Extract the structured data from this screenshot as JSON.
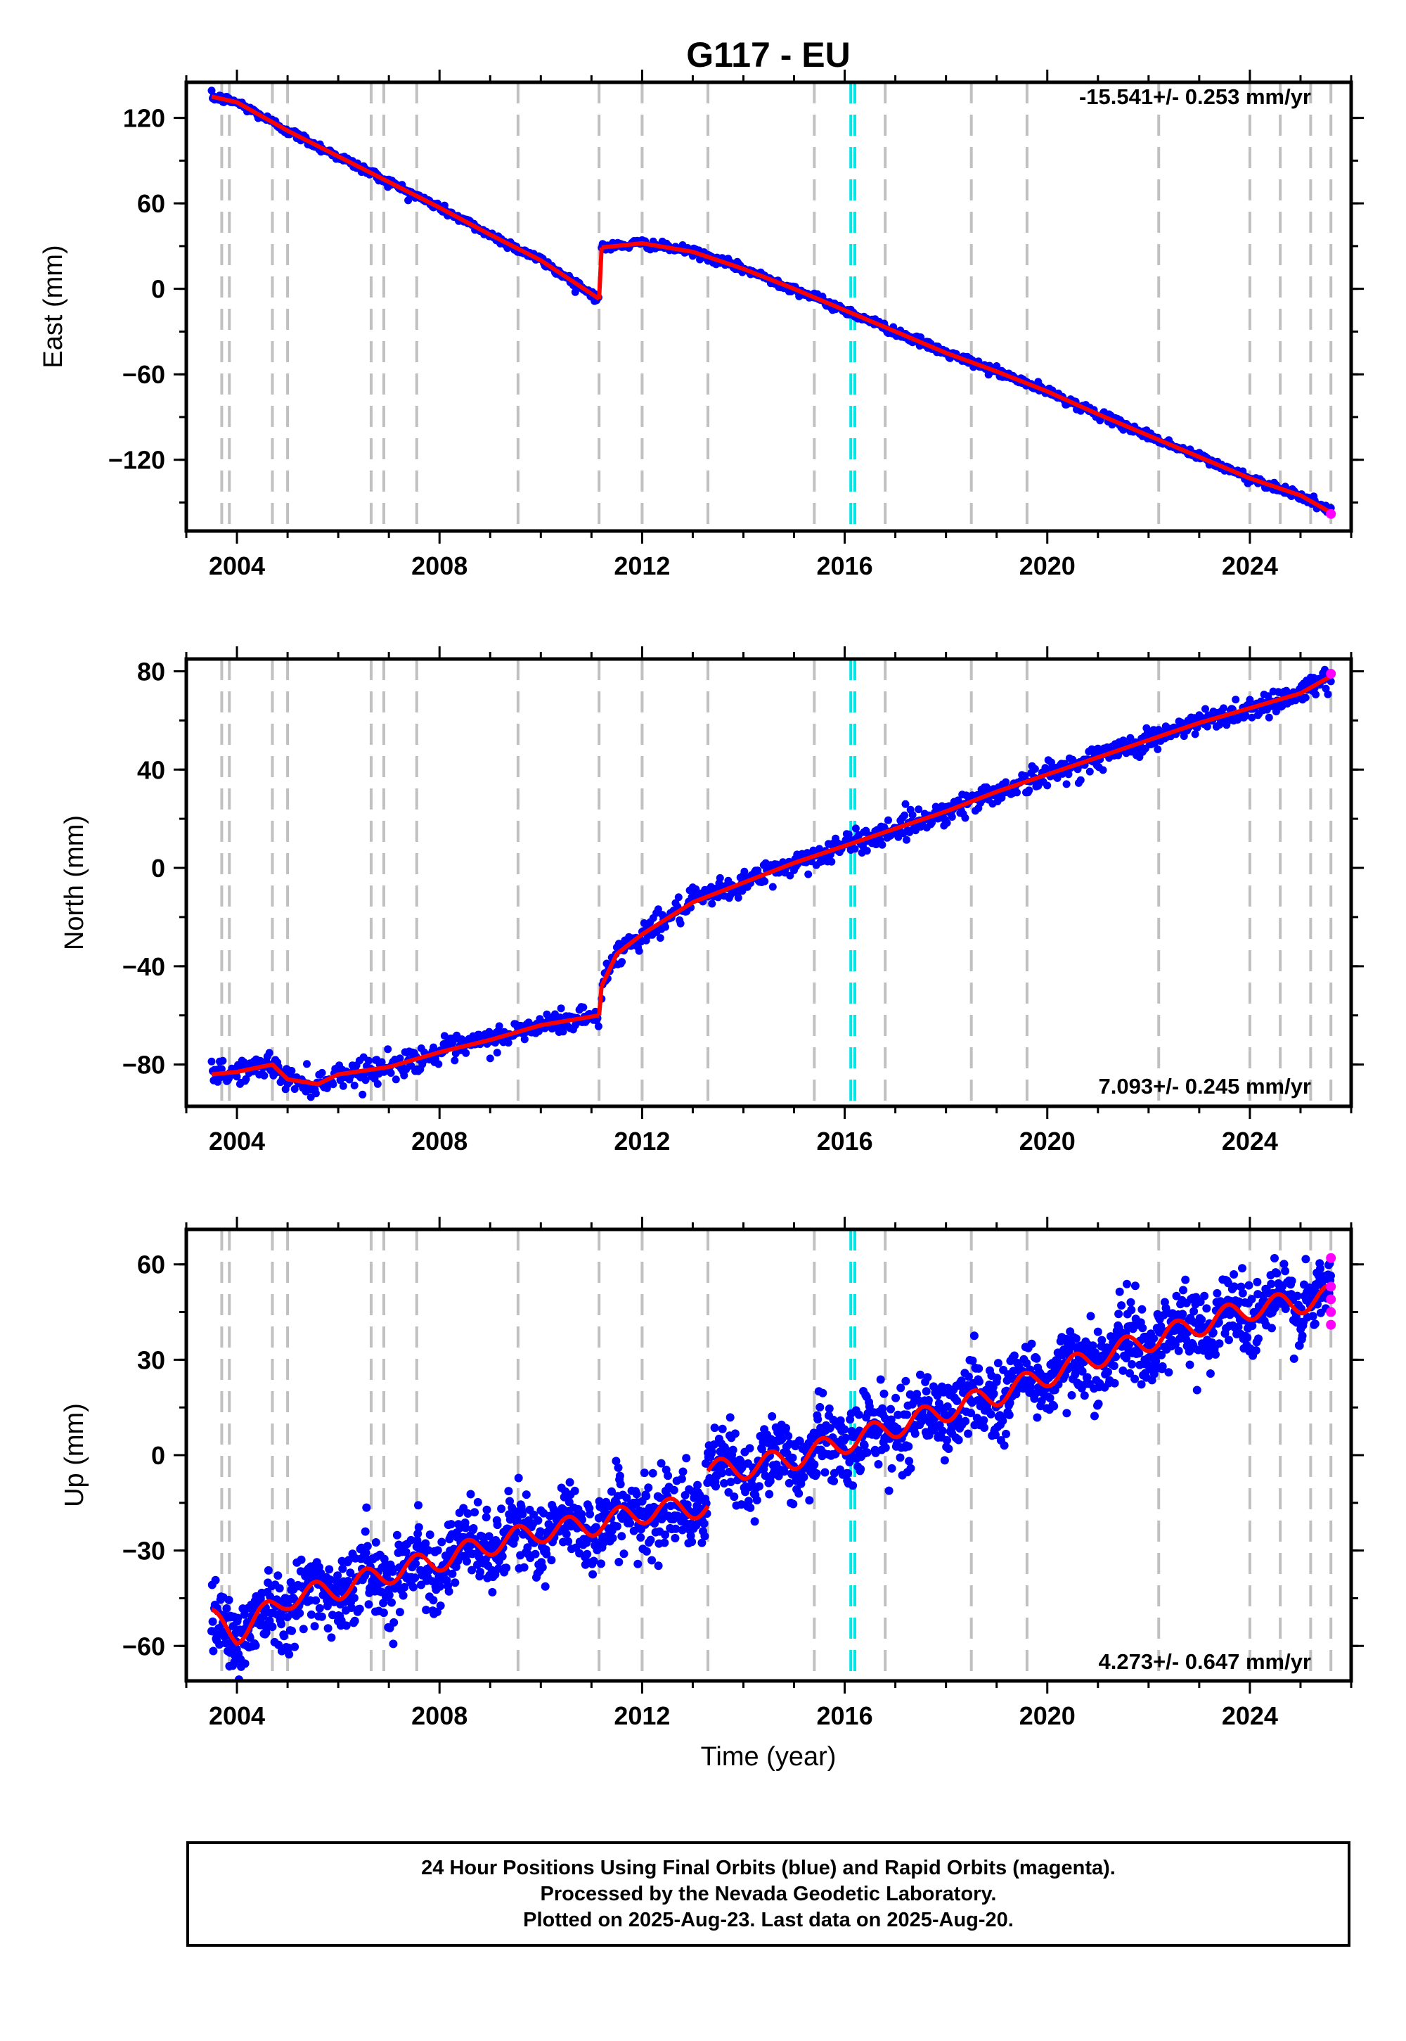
{
  "title": "G117 - EU",
  "xlabel": "Time (year)",
  "caption": [
    "24 Hour Positions Using Final Orbits (blue) and Rapid Orbits (magenta).",
    "Processed by the Nevada Geodetic Laboratory.",
    "Plotted on 2025-Aug-23. Last data on 2025-Aug-20."
  ],
  "colors": {
    "final_orbits": "#0000ff",
    "rapid_orbits": "#ff00ff",
    "model": "#ff0000",
    "equipment_change": "#c0c0c0",
    "earthquake": "#00e5e5"
  },
  "chart_data": [
    {
      "type": "scatter",
      "ylabel": "East (mm)",
      "rate_label": "-15.541+/- 0.253 mm/yr",
      "xlim": [
        2003.0,
        2026.0
      ],
      "ylim": [
        -170,
        145
      ],
      "xticks": [
        "2004",
        "2008",
        "2012",
        "2016",
        "2020",
        "2024"
      ],
      "yticks": [
        "120",
        "60",
        "0",
        "-60",
        "-120"
      ],
      "grid": false,
      "series": [
        {
          "name": "Final Orbits (blue)",
          "segments": [
            {
              "x": [
                2003.5,
                2004.0,
                2005.0,
                2006.0,
                2007.0,
                2008.0,
                2009.0,
                2010.0,
                2011.15
              ],
              "y": [
                135,
                131,
                111,
                93,
                75,
                57,
                38,
                20,
                -7
              ]
            },
            {
              "x": [
                2011.2,
                2012.0,
                2013.0,
                2014.0,
                2015.0,
                2016.0,
                2017.0,
                2018.0,
                2019.0,
                2020.0,
                2021.0,
                2022.0,
                2023.0,
                2024.0,
                2025.0,
                2025.6
              ],
              "y": [
                29,
                32,
                26,
                14,
                0,
                -15,
                -30,
                -45,
                -58,
                -72,
                -88,
                -103,
                -118,
                -133,
                -145,
                -157
              ]
            }
          ],
          "scatter_mm": 1.5
        },
        {
          "name": "Rapid Orbits (magenta)",
          "x": [
            2025.6
          ],
          "y": [
            -158
          ]
        }
      ],
      "model_line": [
        {
          "x": [
            2003.5,
            2004.0,
            2005.0,
            2006.0,
            2007.0,
            2008.0,
            2009.0,
            2010.0,
            2011.15
          ],
          "y": [
            135,
            131,
            111,
            93,
            75,
            57,
            38,
            20,
            -7
          ]
        },
        {
          "x": [
            2011.15,
            2011.2
          ],
          "y": [
            -7,
            29
          ]
        },
        {
          "x": [
            2011.2,
            2012.0,
            2013.0,
            2014.0,
            2015.0,
            2016.0,
            2017.0,
            2018.0,
            2019.0,
            2020.0,
            2021.0,
            2022.0,
            2023.0,
            2024.0,
            2025.0,
            2025.6
          ],
          "y": [
            29,
            32,
            26,
            14,
            0,
            -15,
            -30,
            -45,
            -58,
            -72,
            -88,
            -103,
            -118,
            -133,
            -145,
            -157
          ]
        }
      ]
    },
    {
      "type": "scatter",
      "ylabel": "North (mm)",
      "rate_label": "7.093+/- 0.245 mm/yr",
      "xlim": [
        2003.0,
        2026.0
      ],
      "ylim": [
        -97,
        85
      ],
      "xticks": [
        "2004",
        "2008",
        "2012",
        "2016",
        "2020",
        "2024"
      ],
      "yticks": [
        "80",
        "40",
        "0",
        "-40",
        "-80"
      ],
      "grid": false,
      "series": [
        {
          "name": "Final Orbits (blue)",
          "segments": [
            {
              "x": [
                2003.5,
                2004.0,
                2004.7,
                2005.0,
                2005.6,
                2006.0,
                2007.0,
                2008.0,
                2009.0,
                2010.0,
                2011.15
              ],
              "y": [
                -84,
                -83,
                -80,
                -86,
                -88,
                -84,
                -81,
                -75,
                -70,
                -64,
                -60
              ]
            },
            {
              "x": [
                2011.2,
                2011.5,
                2012.0,
                2013.0,
                2014.0,
                2015.0,
                2016.0,
                2017.0,
                2018.0,
                2019.0,
                2020.0,
                2021.0,
                2022.0,
                2023.0,
                2024.0,
                2025.0,
                2025.6
              ],
              "y": [
                -48,
                -35,
                -27,
                -14,
                -6,
                2,
                9,
                16,
                23,
                31,
                38,
                45,
                52,
                59,
                65,
                71,
                78
              ]
            }
          ],
          "scatter_mm": 2.5
        },
        {
          "name": "Rapid Orbits (magenta)",
          "x": [
            2025.6
          ],
          "y": [
            79
          ]
        }
      ],
      "model_line": [
        {
          "x": [
            2003.5,
            2004.0,
            2004.7,
            2005.0,
            2005.6,
            2006.0,
            2007.0,
            2008.0,
            2009.0,
            2010.0,
            2011.15
          ],
          "y": [
            -84,
            -83,
            -80,
            -86,
            -88,
            -84,
            -81,
            -75,
            -70,
            -64,
            -60
          ]
        },
        {
          "x": [
            2011.15,
            2011.2
          ],
          "y": [
            -60,
            -48
          ]
        },
        {
          "x": [
            2011.2,
            2011.5,
            2012.0,
            2013.0,
            2014.0,
            2015.0,
            2016.0,
            2017.0,
            2018.0,
            2019.0,
            2020.0,
            2021.0,
            2022.0,
            2023.0,
            2024.0,
            2025.0,
            2025.6
          ],
          "y": [
            -48,
            -35,
            -27,
            -14,
            -6,
            2,
            9,
            16,
            23,
            31,
            38,
            45,
            52,
            59,
            65,
            71,
            78
          ]
        }
      ]
    },
    {
      "type": "scatter",
      "ylabel": "Up (mm)",
      "rate_label": "4.273+/- 0.647 mm/yr",
      "xlim": [
        2003.0,
        2026.0
      ],
      "ylim": [
        -71,
        71
      ],
      "xticks": [
        "2004",
        "2008",
        "2012",
        "2016",
        "2020",
        "2024"
      ],
      "yticks": [
        "60",
        "30",
        "0",
        "-30",
        "-60"
      ],
      "grid": false,
      "series": [
        {
          "name": "Final Orbits (blue)",
          "segments": [
            {
              "x": [
                2003.5,
                2004.0,
                2005.0,
                2006.0,
                2007.0,
                2008.0,
                2009.0,
                2010.0,
                2011.0,
                2012.0,
                2013.3
              ],
              "y": [
                -52,
                -56,
                -45,
                -42,
                -37,
                -33,
                -28,
                -24,
                -22,
                -18,
                -16
              ]
            },
            {
              "x": [
                2013.3,
                2014.0,
                2015.0,
                2016.0,
                2017.0,
                2018.0,
                2019.0,
                2020.0,
                2021.0,
                2022.0,
                2023.0,
                2024.0,
                2025.0,
                2025.6
              ],
              "y": [
                -5,
                -4,
                -1,
                4,
                9,
                14,
                19,
                25,
                31,
                36,
                41,
                46,
                48,
                50
              ]
            }
          ],
          "scatter_mm": 6.0,
          "seasonal_mm": 3.5
        },
        {
          "name": "Rapid Orbits (magenta)",
          "x": [
            2025.6,
            2025.6,
            2025.6,
            2025.6,
            2025.6
          ],
          "y": [
            62,
            53,
            49,
            45,
            41
          ]
        }
      ]
    }
  ],
  "equipment_changes": [
    2003.7,
    2003.85,
    2004.7,
    2005.0,
    2006.65,
    2006.9,
    2007.55,
    2009.55,
    2011.15,
    2012.0,
    2013.3,
    2015.4,
    2016.8,
    2018.5,
    2019.6,
    2022.2,
    2024.0,
    2024.6,
    2025.2,
    2025.6
  ],
  "earthquakes": [
    2016.12,
    2016.2
  ]
}
